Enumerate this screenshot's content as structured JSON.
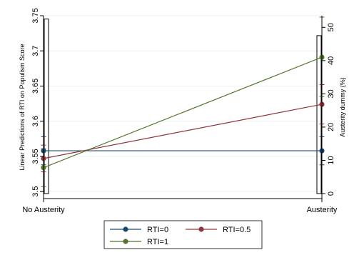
{
  "chart_data": {
    "type": "line",
    "title": "",
    "x": [
      "No Austerity",
      "Austerity"
    ],
    "ylabel_left": "Linear Predictions of RTI on Populism Score",
    "ylabel_right": "Austerity dummy (%)",
    "ylim_left": [
      3.49,
      3.75
    ],
    "yticks_left": [
      3.5,
      3.55,
      3.6,
      3.65,
      3.7,
      3.75
    ],
    "ylim_right": [
      -1.5,
      53.5
    ],
    "yticks_right": [
      0,
      10,
      20,
      30,
      40,
      50
    ],
    "series": [
      {
        "name": "RTI=0",
        "color": "#1a476f",
        "values": [
          3.558,
          3.558
        ],
        "ci_low": [
          3.538,
          3.538
        ],
        "ci_high": [
          3.578,
          3.578
        ]
      },
      {
        "name": "RTI=0.5",
        "color": "#90353b",
        "values": [
          3.547,
          3.624
        ],
        "ci_low": [
          3.528,
          3.596
        ],
        "ci_high": [
          3.566,
          3.652
        ]
      },
      {
        "name": "RTI=1",
        "color": "#55752f",
        "values": [
          3.534,
          3.691
        ],
        "ci_low": [
          3.507,
          3.635
        ],
        "ci_high": [
          3.561,
          3.748
        ]
      }
    ],
    "histogram": [
      {
        "category": "No Austerity",
        "percent": 52.5
      },
      {
        "category": "Austerity",
        "percent": 47.5
      }
    ],
    "legend": {
      "position": "bottom",
      "entries": [
        "RTI=0",
        "RTI=0.5",
        "RTI=1"
      ]
    },
    "grid": true
  }
}
